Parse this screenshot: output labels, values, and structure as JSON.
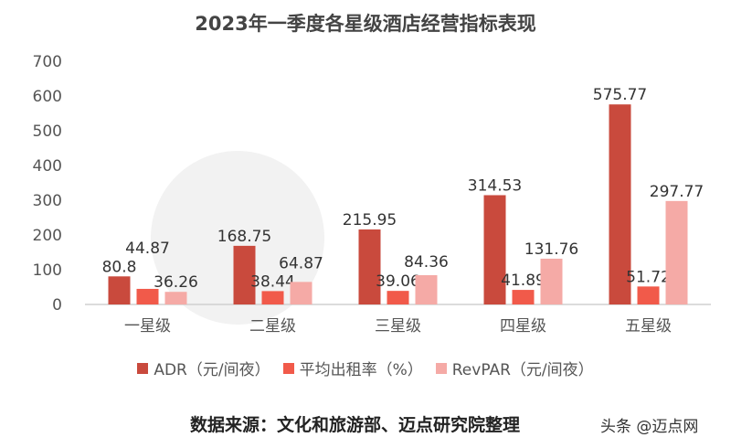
{
  "chart_data": {
    "type": "bar",
    "title": "2023年一季度各星级酒店经营指标表现",
    "categories": [
      "一星级",
      "二星级",
      "三星级",
      "四星级",
      "五星级"
    ],
    "series": [
      {
        "name": "ADR（元/间夜）",
        "values": [
          80.8,
          168.75,
          215.95,
          314.53,
          575.77
        ],
        "color": "#c94a3d"
      },
      {
        "name": "平均出租率（%）",
        "values": [
          44.87,
          38.44,
          39.06,
          41.89,
          51.72
        ],
        "color": "#f15a4a"
      },
      {
        "name": "RevPAR（元/间夜）",
        "values": [
          36.26,
          64.87,
          84.36,
          131.76,
          297.77
        ],
        "color": "#f5aaa6"
      }
    ],
    "data_labels": [
      [
        "80.8",
        "168.75",
        "215.95",
        "314.53",
        "575.77"
      ],
      [
        "44.87",
        "38.44",
        "39.06",
        "41.89",
        "51.72"
      ],
      [
        "36.26",
        "64.87",
        "84.36",
        "131.76",
        "297.77"
      ]
    ],
    "ylim": [
      0,
      700
    ],
    "yticks": [
      "0",
      "100",
      "200",
      "300",
      "400",
      "500",
      "600",
      "700"
    ],
    "grid": false,
    "legend": "bottom"
  },
  "source": "数据来源：文化和旅游部、迈点研究院整理",
  "watermark": "头条 @迈点网"
}
